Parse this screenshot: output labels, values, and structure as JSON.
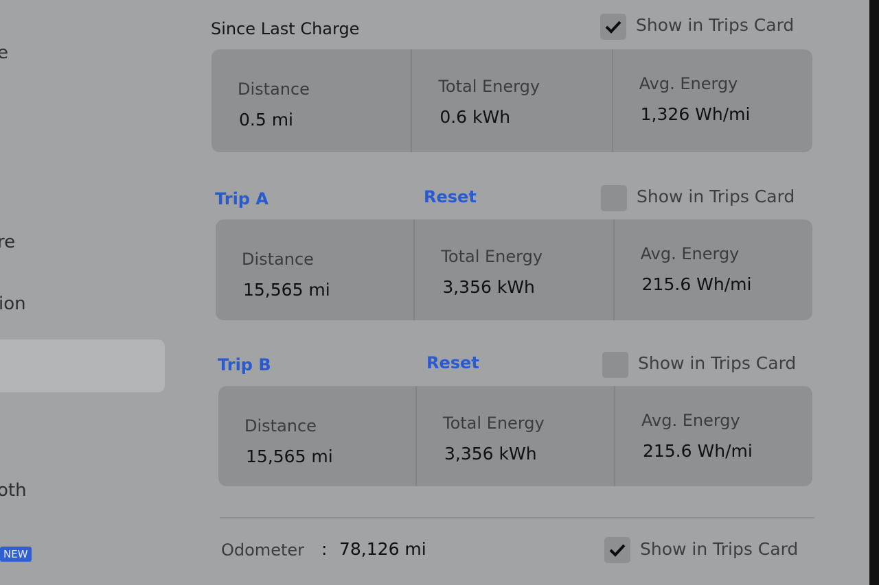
{
  "sidebar": {
    "items": [
      "e",
      "re",
      "ion",
      "oth"
    ],
    "badge": "NEW"
  },
  "sections": [
    {
      "title": "Since Last Charge",
      "show_label": "Show in Trips Card",
      "checked": true,
      "stats": [
        {
          "label": "Distance",
          "value": "0.5 mi"
        },
        {
          "label": "Total Energy",
          "value": "0.6 kWh"
        },
        {
          "label": "Avg. Energy",
          "value": "1,326 Wh/mi"
        }
      ]
    },
    {
      "title": "Trip A",
      "reset": "Reset",
      "show_label": "Show in Trips Card",
      "checked": false,
      "stats": [
        {
          "label": "Distance",
          "value": "15,565 mi"
        },
        {
          "label": "Total Energy",
          "value": "3,356 kWh"
        },
        {
          "label": "Avg. Energy",
          "value": "215.6 Wh/mi"
        }
      ]
    },
    {
      "title": "Trip B",
      "reset": "Reset",
      "show_label": "Show in Trips Card",
      "checked": false,
      "stats": [
        {
          "label": "Distance",
          "value": "15,565 mi"
        },
        {
          "label": "Total Energy",
          "value": "3,356 kWh"
        },
        {
          "label": "Avg. Energy",
          "value": "215.6 Wh/mi"
        }
      ]
    }
  ],
  "odometer": {
    "label": "Odometer",
    "separator": ":",
    "value": "78,126 mi",
    "show_label": "Show in Trips Card",
    "checked": true
  }
}
